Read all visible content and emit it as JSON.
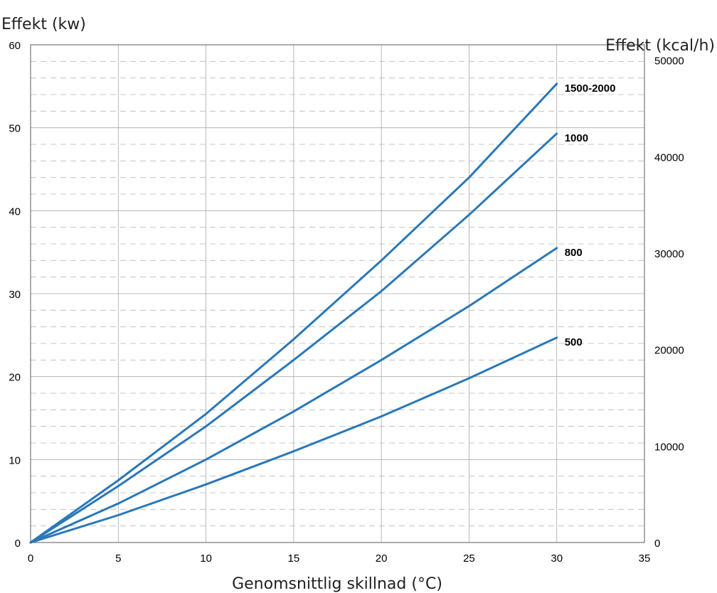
{
  "chart_data": {
    "type": "line",
    "title": "",
    "ylabel": "Effekt (kw)",
    "y2label": "Effekt (kcal/h)",
    "xlabel": "Genomsnittlig skillnad (°C)",
    "xlim": [
      0,
      35
    ],
    "ylim": [
      0,
      60
    ],
    "y2lim": [
      0,
      51600
    ],
    "x_ticks": [
      "0",
      "5",
      "10",
      "15",
      "20",
      "25",
      "30",
      "35"
    ],
    "y_ticks": [
      "0",
      "10",
      "20",
      "30",
      "40",
      "50",
      "60"
    ],
    "y2_ticks": [
      "0",
      "10000",
      "20000",
      "30000",
      "40000",
      "50000"
    ],
    "grid": true,
    "legend": "inline labels at line ends",
    "series_color": "#2a78b8",
    "x": [
      0,
      5,
      10,
      15,
      20,
      25,
      30
    ],
    "series": [
      {
        "name": "1500-2000",
        "values": [
          0,
          7.5,
          15.5,
          24.5,
          34,
          44,
          55.3
        ]
      },
      {
        "name": "1000",
        "values": [
          0,
          6.8,
          14,
          22,
          30.3,
          39.5,
          49.3
        ]
      },
      {
        "name": "800",
        "values": [
          0,
          4.7,
          10,
          15.8,
          22,
          28.5,
          35.5
        ]
      },
      {
        "name": "500",
        "values": [
          0,
          3.3,
          7,
          11,
          15.2,
          19.8,
          24.7
        ]
      }
    ]
  }
}
